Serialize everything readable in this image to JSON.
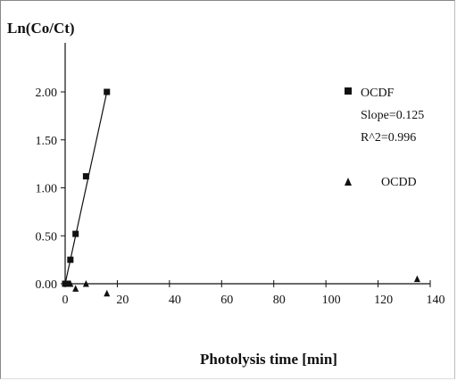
{
  "chart_data": {
    "type": "scatter",
    "ylabel": "Ln(Co/Ct)",
    "xlabel": "Photolysis time [min]",
    "xlim": [
      0,
      140
    ],
    "ylim": [
      0,
      2.0
    ],
    "x_ticks": [
      "0",
      "20",
      "40",
      "60",
      "80",
      "100",
      "120",
      "140"
    ],
    "y_ticks": [
      "0.00",
      "0.50",
      "1.00",
      "1.50",
      "2.00"
    ],
    "grid": false,
    "legend_position": "right",
    "series": [
      {
        "name": "OCDF",
        "marker": "square",
        "color": "#111111",
        "x": [
          0,
          1,
          2,
          4,
          8,
          16
        ],
        "y": [
          0.0,
          0.0,
          0.25,
          0.52,
          1.12,
          2.0
        ],
        "fit": {
          "x": [
            0,
            16
          ],
          "y": [
            0.0,
            2.0
          ]
        },
        "annotations": [
          "Slope=0.125",
          "R^2=0.996"
        ]
      },
      {
        "name": "OCDD",
        "marker": "triangle",
        "color": "#111111",
        "x": [
          0,
          2,
          4,
          8,
          16,
          135
        ],
        "y": [
          0.0,
          0.0,
          -0.05,
          0.0,
          -0.1,
          0.05
        ]
      }
    ]
  }
}
